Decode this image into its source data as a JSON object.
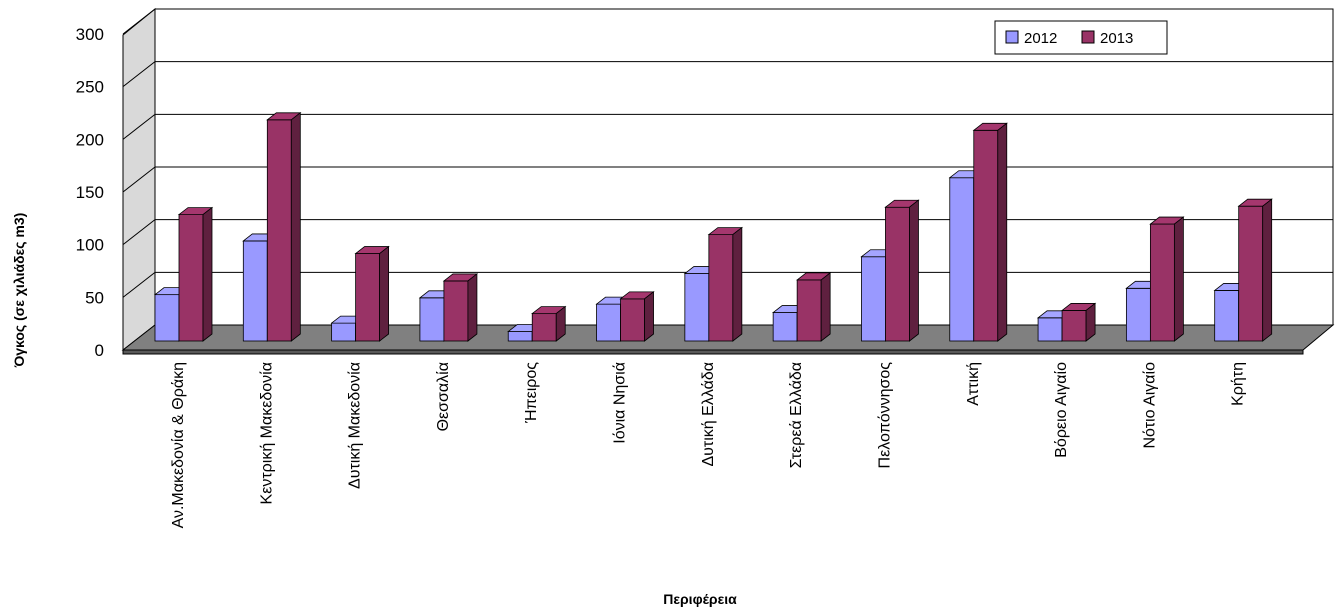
{
  "chart_data": {
    "type": "bar",
    "title": "",
    "xlabel": "Περιφέρεια",
    "ylabel": "Όγκος (σε χιλιάδες m3)",
    "ylim": [
      0,
      300
    ],
    "yticks": [
      0,
      50,
      100,
      150,
      200,
      250,
      300
    ],
    "grid": true,
    "legend_position": "top-right",
    "categories": [
      "Αν.Μακεδονία & Θράκη",
      "Κεντρική Μακεδονία",
      "Δυτική Μακεδονία",
      "Θεσσαλία",
      "Ήπειρος",
      "Ιόνια Νησιά",
      "Δυτική Ελλάδα",
      "Στερεά Ελλάδα",
      "Πελοπόννησος",
      "Αττική",
      "Βόρειο Αιγαίο",
      "Νότιο Αιγαίο",
      "Κρήτη"
    ],
    "series": [
      {
        "name": "2012",
        "color": "#9999ff",
        "values": [
          44,
          95,
          17,
          41,
          9,
          35,
          64,
          27,
          80,
          155,
          22,
          50,
          48
        ]
      },
      {
        "name": "2013",
        "color": "#993366",
        "values": [
          120,
          210,
          83,
          57,
          26,
          40,
          101,
          58,
          127,
          200,
          29,
          111,
          128
        ]
      }
    ]
  }
}
